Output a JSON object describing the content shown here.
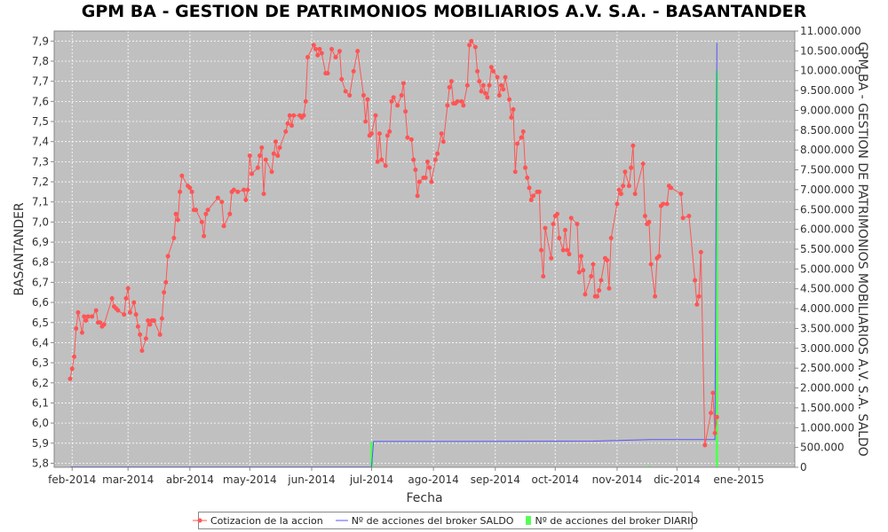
{
  "chart_data": {
    "type": "line",
    "title": "GPM BA - GESTION DE PATRIMONIOS MOBILIARIOS A.V. S.A. - BASANTANDER",
    "xlabel": "Fecha",
    "ylabel": "BASANTANDER",
    "y2label": "GPM BA - GESTION DE PATRIMONIOS MOBILIARIOS A.V. S.A. SALDO",
    "background_color": "#c0c0c0",
    "grid": true,
    "legend_position": "bottom",
    "x_ticks": [
      "feb-2014",
      "mar-2014",
      "abr-2014",
      "may-2014",
      "jun-2014",
      "jul-2014",
      "ago-2014",
      "sep-2014",
      "oct-2014",
      "nov-2014",
      "dic-2014",
      "ene-2015"
    ],
    "x_tick_dates": [
      "2014-02-01",
      "2014-03-01",
      "2014-04-01",
      "2014-05-01",
      "2014-06-01",
      "2014-07-01",
      "2014-08-01",
      "2014-09-01",
      "2014-10-01",
      "2014-11-01",
      "2014-12-01",
      "2015-01-01"
    ],
    "xlim": [
      "2014-01-23",
      "2015-01-29"
    ],
    "y_ticks": [
      "5,8",
      "5,9",
      "6,0",
      "6,1",
      "6,2",
      "6,3",
      "6,4",
      "6,5",
      "6,6",
      "6,7",
      "6,8",
      "6,9",
      "7,0",
      "7,1",
      "7,2",
      "7,3",
      "7,4",
      "7,5",
      "7,6",
      "7,7",
      "7,8",
      "7,9"
    ],
    "ylim": [
      5.78,
      7.95
    ],
    "y2_ticks": [
      "0",
      "500.000",
      "1.000.000",
      "1.500.000",
      "2.000.000",
      "2.500.000",
      "3.000.000",
      "3.500.000",
      "4.000.000",
      "4.500.000",
      "5.000.000",
      "5.500.000",
      "6.000.000",
      "6.500.000",
      "7.000.000",
      "7.500.000",
      "8.000.000",
      "8.500.000",
      "9.000.000",
      "9.500.000",
      "10.000.000",
      "10.500.000",
      "11.000.000"
    ],
    "y2lim": [
      0,
      11000000
    ],
    "series": [
      {
        "name": "Cotizacion de la accion",
        "axis": "left",
        "color": "#ff5555",
        "points": [
          [
            "2014-01-31",
            6.22
          ],
          [
            "2014-02-01",
            6.27
          ],
          [
            "2014-02-02",
            6.33
          ],
          [
            "2014-02-03",
            6.47
          ],
          [
            "2014-02-04",
            6.55
          ],
          [
            "2014-02-06",
            6.45
          ],
          [
            "2014-02-07",
            6.53
          ],
          [
            "2014-02-08",
            6.51
          ],
          [
            "2014-02-09",
            6.53
          ],
          [
            "2014-02-11",
            6.53
          ],
          [
            "2014-02-13",
            6.56
          ],
          [
            "2014-02-14",
            6.5
          ],
          [
            "2014-02-15",
            6.5
          ],
          [
            "2014-02-16",
            6.48
          ],
          [
            "2014-02-17",
            6.49
          ],
          [
            "2014-02-21",
            6.62
          ],
          [
            "2014-02-22",
            6.58
          ],
          [
            "2014-02-23",
            6.57
          ],
          [
            "2014-02-24",
            6.56
          ],
          [
            "2014-02-27",
            6.54
          ],
          [
            "2014-02-28",
            6.62
          ],
          [
            "2014-03-01",
            6.67
          ],
          [
            "2014-03-02",
            6.55
          ],
          [
            "2014-03-04",
            6.6
          ],
          [
            "2014-03-05",
            6.54
          ],
          [
            "2014-03-06",
            6.48
          ],
          [
            "2014-03-07",
            6.44
          ],
          [
            "2014-03-08",
            6.36
          ],
          [
            "2014-03-10",
            6.42
          ],
          [
            "2014-03-11",
            6.51
          ],
          [
            "2014-03-12",
            6.49
          ],
          [
            "2014-03-13",
            6.51
          ],
          [
            "2014-03-14",
            6.51
          ],
          [
            "2014-03-17",
            6.44
          ],
          [
            "2014-03-18",
            6.52
          ],
          [
            "2014-03-19",
            6.65
          ],
          [
            "2014-03-20",
            6.7
          ],
          [
            "2014-03-21",
            6.83
          ],
          [
            "2014-03-24",
            6.92
          ],
          [
            "2014-03-25",
            7.04
          ],
          [
            "2014-03-26",
            7.01
          ],
          [
            "2014-03-27",
            7.15
          ],
          [
            "2014-03-28",
            7.23
          ],
          [
            "2014-03-31",
            7.18
          ],
          [
            "2014-04-01",
            7.17
          ],
          [
            "2014-04-02",
            7.15
          ],
          [
            "2014-04-03",
            7.06
          ],
          [
            "2014-04-04",
            7.06
          ],
          [
            "2014-04-07",
            7.0
          ],
          [
            "2014-04-08",
            6.93
          ],
          [
            "2014-04-09",
            7.04
          ],
          [
            "2014-04-10",
            7.06
          ],
          [
            "2014-04-15",
            7.12
          ],
          [
            "2014-04-17",
            7.1
          ],
          [
            "2014-04-18",
            6.98
          ],
          [
            "2014-04-21",
            7.04
          ],
          [
            "2014-04-22",
            7.15
          ],
          [
            "2014-04-23",
            7.16
          ],
          [
            "2014-04-25",
            7.15
          ],
          [
            "2014-04-28",
            7.16
          ],
          [
            "2014-04-29",
            7.11
          ],
          [
            "2014-04-30",
            7.16
          ],
          [
            "2014-05-01",
            7.33
          ],
          [
            "2014-05-02",
            7.24
          ],
          [
            "2014-05-05",
            7.27
          ],
          [
            "2014-05-06",
            7.33
          ],
          [
            "2014-05-07",
            7.37
          ],
          [
            "2014-05-08",
            7.14
          ],
          [
            "2014-05-09",
            7.31
          ],
          [
            "2014-05-12",
            7.25
          ],
          [
            "2014-05-13",
            7.34
          ],
          [
            "2014-05-14",
            7.4
          ],
          [
            "2014-05-15",
            7.33
          ],
          [
            "2014-05-16",
            7.37
          ],
          [
            "2014-05-19",
            7.45
          ],
          [
            "2014-05-20",
            7.49
          ],
          [
            "2014-05-21",
            7.53
          ],
          [
            "2014-05-22",
            7.48
          ],
          [
            "2014-05-23",
            7.53
          ],
          [
            "2014-05-26",
            7.53
          ],
          [
            "2014-05-27",
            7.52
          ],
          [
            "2014-05-28",
            7.53
          ],
          [
            "2014-05-29",
            7.6
          ],
          [
            "2014-05-30",
            7.82
          ],
          [
            "2014-06-02",
            7.88
          ],
          [
            "2014-06-03",
            7.86
          ],
          [
            "2014-06-04",
            7.83
          ],
          [
            "2014-06-05",
            7.86
          ],
          [
            "2014-06-06",
            7.84
          ],
          [
            "2014-06-08",
            7.74
          ],
          [
            "2014-06-09",
            7.74
          ],
          [
            "2014-06-11",
            7.86
          ],
          [
            "2014-06-13",
            7.82
          ],
          [
            "2014-06-15",
            7.85
          ],
          [
            "2014-06-16",
            7.71
          ],
          [
            "2014-06-18",
            7.65
          ],
          [
            "2014-06-20",
            7.63
          ],
          [
            "2014-06-22",
            7.75
          ],
          [
            "2014-06-24",
            7.85
          ],
          [
            "2014-06-27",
            7.63
          ],
          [
            "2014-06-28",
            7.5
          ],
          [
            "2014-06-29",
            7.61
          ],
          [
            "2014-06-30",
            7.43
          ],
          [
            "2014-07-01",
            7.44
          ],
          [
            "2014-07-03",
            7.53
          ],
          [
            "2014-07-04",
            7.3
          ],
          [
            "2014-07-05",
            7.44
          ],
          [
            "2014-07-06",
            7.31
          ],
          [
            "2014-07-08",
            7.28
          ],
          [
            "2014-07-09",
            7.43
          ],
          [
            "2014-07-10",
            7.45
          ],
          [
            "2014-07-11",
            7.6
          ],
          [
            "2014-07-12",
            7.62
          ],
          [
            "2014-07-14",
            7.58
          ],
          [
            "2014-07-16",
            7.63
          ],
          [
            "2014-07-17",
            7.69
          ],
          [
            "2014-07-18",
            7.55
          ],
          [
            "2014-07-19",
            7.42
          ],
          [
            "2014-07-21",
            7.41
          ],
          [
            "2014-07-22",
            7.31
          ],
          [
            "2014-07-23",
            7.26
          ],
          [
            "2014-07-24",
            7.13
          ],
          [
            "2014-07-25",
            7.2
          ],
          [
            "2014-07-27",
            7.22
          ],
          [
            "2014-07-28",
            7.22
          ],
          [
            "2014-07-29",
            7.3
          ],
          [
            "2014-07-30",
            7.27
          ],
          [
            "2014-07-31",
            7.2
          ],
          [
            "2014-08-02",
            7.31
          ],
          [
            "2014-08-03",
            7.34
          ],
          [
            "2014-08-05",
            7.44
          ],
          [
            "2014-08-06",
            7.4
          ],
          [
            "2014-08-08",
            7.58
          ],
          [
            "2014-08-09",
            7.67
          ],
          [
            "2014-08-10",
            7.7
          ],
          [
            "2014-08-11",
            7.59
          ],
          [
            "2014-08-12",
            7.59
          ],
          [
            "2014-08-13",
            7.6
          ],
          [
            "2014-08-15",
            7.6
          ],
          [
            "2014-08-16",
            7.58
          ],
          [
            "2014-08-18",
            7.68
          ],
          [
            "2014-08-19",
            7.88
          ],
          [
            "2014-08-20",
            7.9
          ],
          [
            "2014-08-22",
            7.87
          ],
          [
            "2014-08-23",
            7.75
          ],
          [
            "2014-08-24",
            7.7
          ],
          [
            "2014-08-25",
            7.65
          ],
          [
            "2014-08-26",
            7.68
          ],
          [
            "2014-08-27",
            7.64
          ],
          [
            "2014-08-28",
            7.62
          ],
          [
            "2014-08-29",
            7.68
          ],
          [
            "2014-08-30",
            7.77
          ],
          [
            "2014-08-31",
            7.75
          ],
          [
            "2014-09-02",
            7.72
          ],
          [
            "2014-09-03",
            7.63
          ],
          [
            "2014-09-04",
            7.68
          ],
          [
            "2014-09-05",
            7.66
          ],
          [
            "2014-09-06",
            7.72
          ],
          [
            "2014-09-08",
            7.61
          ],
          [
            "2014-09-09",
            7.52
          ],
          [
            "2014-09-10",
            7.56
          ],
          [
            "2014-09-11",
            7.25
          ],
          [
            "2014-09-12",
            7.39
          ],
          [
            "2014-09-14",
            7.42
          ],
          [
            "2014-09-15",
            7.45
          ],
          [
            "2014-09-16",
            7.27
          ],
          [
            "2014-09-17",
            7.22
          ],
          [
            "2014-09-18",
            7.17
          ],
          [
            "2014-09-19",
            7.11
          ],
          [
            "2014-09-20",
            7.13
          ],
          [
            "2014-09-22",
            7.15
          ],
          [
            "2014-09-23",
            7.15
          ],
          [
            "2014-09-24",
            6.86
          ],
          [
            "2014-09-25",
            6.73
          ],
          [
            "2014-09-26",
            6.97
          ],
          [
            "2014-09-29",
            6.82
          ],
          [
            "2014-09-30",
            6.99
          ],
          [
            "2014-10-01",
            7.03
          ],
          [
            "2014-10-02",
            7.04
          ],
          [
            "2014-10-03",
            6.92
          ],
          [
            "2014-10-05",
            6.86
          ],
          [
            "2014-10-06",
            6.96
          ],
          [
            "2014-10-07",
            6.86
          ],
          [
            "2014-10-08",
            6.84
          ],
          [
            "2014-10-09",
            7.02
          ],
          [
            "2014-10-12",
            6.99
          ],
          [
            "2014-10-13",
            6.75
          ],
          [
            "2014-10-14",
            6.83
          ],
          [
            "2014-10-15",
            6.76
          ],
          [
            "2014-10-16",
            6.64
          ],
          [
            "2014-10-19",
            6.73
          ],
          [
            "2014-10-20",
            6.79
          ],
          [
            "2014-10-21",
            6.63
          ],
          [
            "2014-10-22",
            6.63
          ],
          [
            "2014-10-23",
            6.66
          ],
          [
            "2014-10-24",
            6.71
          ],
          [
            "2014-10-26",
            6.82
          ],
          [
            "2014-10-27",
            6.81
          ],
          [
            "2014-10-28",
            6.67
          ],
          [
            "2014-10-29",
            6.92
          ],
          [
            "2014-11-01",
            7.09
          ],
          [
            "2014-11-02",
            7.16
          ],
          [
            "2014-11-03",
            7.14
          ],
          [
            "2014-11-04",
            7.18
          ],
          [
            "2014-11-05",
            7.25
          ],
          [
            "2014-11-07",
            7.18
          ],
          [
            "2014-11-08",
            7.27
          ],
          [
            "2014-11-09",
            7.38
          ],
          [
            "2014-11-10",
            7.14
          ],
          [
            "2014-11-14",
            7.29
          ],
          [
            "2014-11-15",
            7.03
          ],
          [
            "2014-11-16",
            6.99
          ],
          [
            "2014-11-17",
            7.0
          ],
          [
            "2014-11-18",
            6.79
          ],
          [
            "2014-11-20",
            6.63
          ],
          [
            "2014-11-21",
            6.82
          ],
          [
            "2014-11-22",
            6.83
          ],
          [
            "2014-11-23",
            7.08
          ],
          [
            "2014-11-24",
            7.09
          ],
          [
            "2014-11-26",
            7.09
          ],
          [
            "2014-11-27",
            7.18
          ],
          [
            "2014-11-28",
            7.17
          ],
          [
            "2014-12-03",
            7.14
          ],
          [
            "2014-12-04",
            7.02
          ],
          [
            "2014-12-07",
            7.03
          ],
          [
            "2014-12-10",
            6.71
          ],
          [
            "2014-12-11",
            6.59
          ],
          [
            "2014-12-12",
            6.63
          ],
          [
            "2014-12-13",
            6.85
          ],
          [
            "2014-12-15",
            5.89
          ],
          [
            "2014-12-18",
            6.05
          ],
          [
            "2014-12-19",
            6.15
          ],
          [
            "2014-12-20",
            5.95
          ],
          [
            "2014-12-21",
            6.03
          ]
        ]
      },
      {
        "name": "Nº de acciones del broker SALDO",
        "axis": "right",
        "color": "#5555ff",
        "points": [
          [
            "2014-01-31",
            10000
          ],
          [
            "2014-07-01",
            10000
          ],
          [
            "2014-07-02",
            650000
          ],
          [
            "2014-08-16",
            650000
          ],
          [
            "2014-10-20",
            660000
          ],
          [
            "2014-11-18",
            700000
          ],
          [
            "2014-12-20",
            700000
          ],
          [
            "2014-12-21",
            10700000
          ]
        ]
      },
      {
        "name": "Nº de acciones del broker DIARIO",
        "axis": "right",
        "color": "#55ff55",
        "bars": [
          [
            "2014-07-01",
            640000
          ],
          [
            "2014-11-17",
            40000
          ],
          [
            "2014-12-21",
            10000000
          ]
        ]
      }
    ]
  }
}
